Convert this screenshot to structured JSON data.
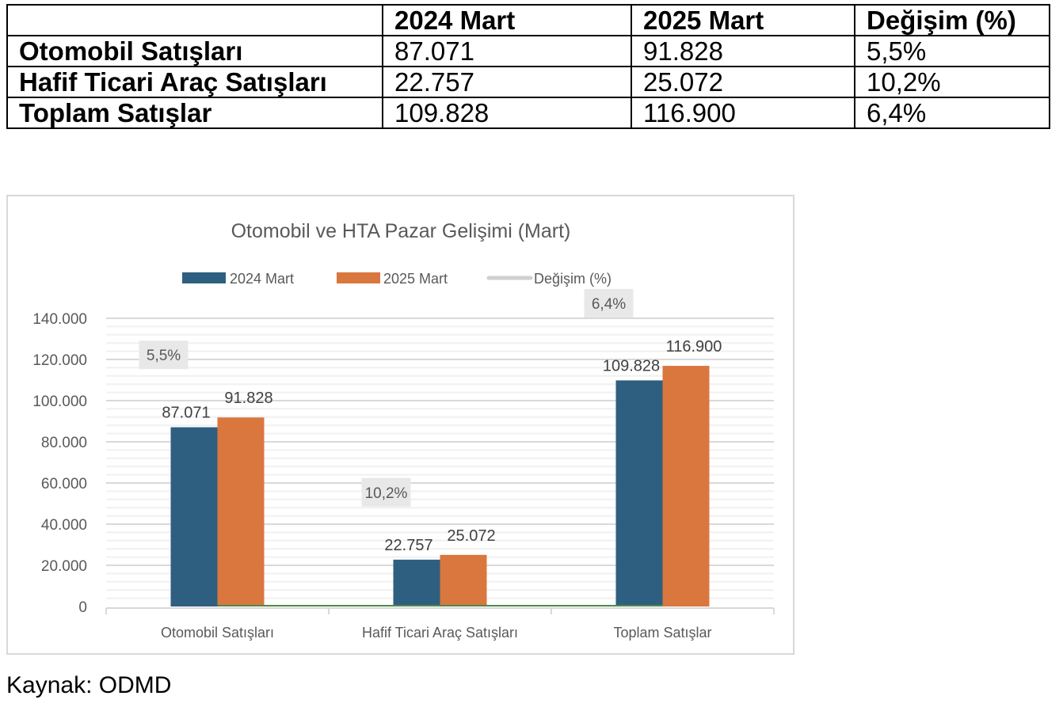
{
  "table": {
    "headers": [
      "",
      "2024 Mart",
      "2025 Mart",
      "Değişim (%)"
    ],
    "rows": [
      {
        "label": "Otomobil Satışları",
        "v2024": "87.071",
        "v2025": "91.828",
        "change": "5,5%"
      },
      {
        "label": "Hafif Ticari Araç Satışları",
        "v2024": "22.757",
        "v2025": "25.072",
        "change": "10,2%"
      },
      {
        "label": "Toplam Satışlar",
        "v2024": "109.828",
        "v2025": "116.900",
        "change": "6,4%"
      }
    ]
  },
  "chart_data": {
    "type": "bar",
    "title": "Otomobil ve HTA Pazar Gelişimi (Mart)",
    "categories": [
      "Otomobil Satışları",
      "Hafif Ticari Araç Satışları",
      "Toplam Satışlar"
    ],
    "series": [
      {
        "name": "2024 Mart",
        "values": [
          87071,
          22757,
          109828
        ],
        "labels": [
          "87.071",
          "22.757",
          "109.828"
        ],
        "color": "#2e5f80"
      },
      {
        "name": "2025 Mart",
        "values": [
          91828,
          25072,
          116900
        ],
        "labels": [
          "91.828",
          "25.072",
          "116.900"
        ],
        "color": "#d9773f"
      },
      {
        "name": "Değişim (%)",
        "type": "line",
        "values": [
          5.5,
          10.2,
          6.4
        ],
        "labels": [
          "5,5%",
          "10,2%",
          "6,4%"
        ],
        "color": "#d0d0d0",
        "line_color": "#4e8a4a"
      }
    ],
    "xlabel": "",
    "ylabel": "",
    "ylim": [
      0,
      140000
    ],
    "yticks": [
      0,
      20000,
      40000,
      60000,
      80000,
      100000,
      120000,
      140000
    ],
    "ytick_labels": [
      "0",
      "20.000",
      "40.000",
      "60.000",
      "80.000",
      "100.000",
      "120.000",
      "140.000"
    ],
    "minor_step": 4000,
    "grid": true,
    "legend": "top"
  },
  "source": "Kaynak: ODMD"
}
